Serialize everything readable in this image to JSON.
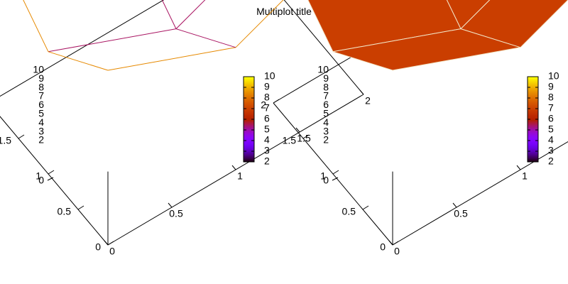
{
  "page": {
    "title": "Multiplot title"
  },
  "chart_data": [
    {
      "type": "surface3d",
      "style": "wireframe",
      "x_ticks": [
        0,
        0.5,
        1,
        1.5,
        2
      ],
      "y_ticks": [
        0,
        0.5,
        1,
        1.5,
        2
      ],
      "z_ticks": [
        2,
        3,
        4,
        5,
        6,
        7,
        8,
        9,
        10
      ],
      "z_tick_labels": [
        "2",
        "3",
        "4",
        "5",
        "6",
        "7",
        "8",
        "9",
        "10"
      ],
      "colorbar_labels": [
        "2",
        "3",
        "4",
        "5",
        "6",
        "7",
        "8",
        "9",
        "10"
      ],
      "colorbar_range": [
        2,
        10
      ],
      "xlim": [
        0,
        2
      ],
      "ylim": [
        0,
        2
      ],
      "zlim": [
        0,
        10
      ],
      "grid_x": [
        0,
        1,
        2
      ],
      "grid_y": [
        0,
        1,
        2
      ],
      "z": [
        [
          10,
          7,
          10
        ],
        [
          7,
          4,
          7
        ],
        [
          10,
          7,
          10
        ]
      ]
    },
    {
      "type": "surface3d",
      "style": "pm3d-filled",
      "x_ticks": [
        0,
        0.5,
        1,
        1.5,
        2
      ],
      "y_ticks": [
        0,
        0.5,
        1,
        1.5,
        2
      ],
      "z_ticks": [
        2,
        3,
        4,
        5,
        6,
        7,
        8,
        9,
        10
      ],
      "z_tick_labels": [
        "2",
        "3",
        "4",
        "5",
        "6",
        "7",
        "8",
        "9",
        "10"
      ],
      "colorbar_labels": [
        "2",
        "3",
        "4",
        "5",
        "6",
        "7",
        "8",
        "9",
        "10"
      ],
      "colorbar_range": [
        2,
        10
      ],
      "xlim": [
        0,
        2
      ],
      "ylim": [
        0,
        2
      ],
      "zlim": [
        0,
        10
      ],
      "grid_x": [
        0,
        1,
        2
      ],
      "grid_y": [
        0,
        1,
        2
      ],
      "z": [
        [
          10,
          7,
          10
        ],
        [
          7,
          4,
          7
        ],
        [
          10,
          7,
          10
        ]
      ]
    }
  ]
}
